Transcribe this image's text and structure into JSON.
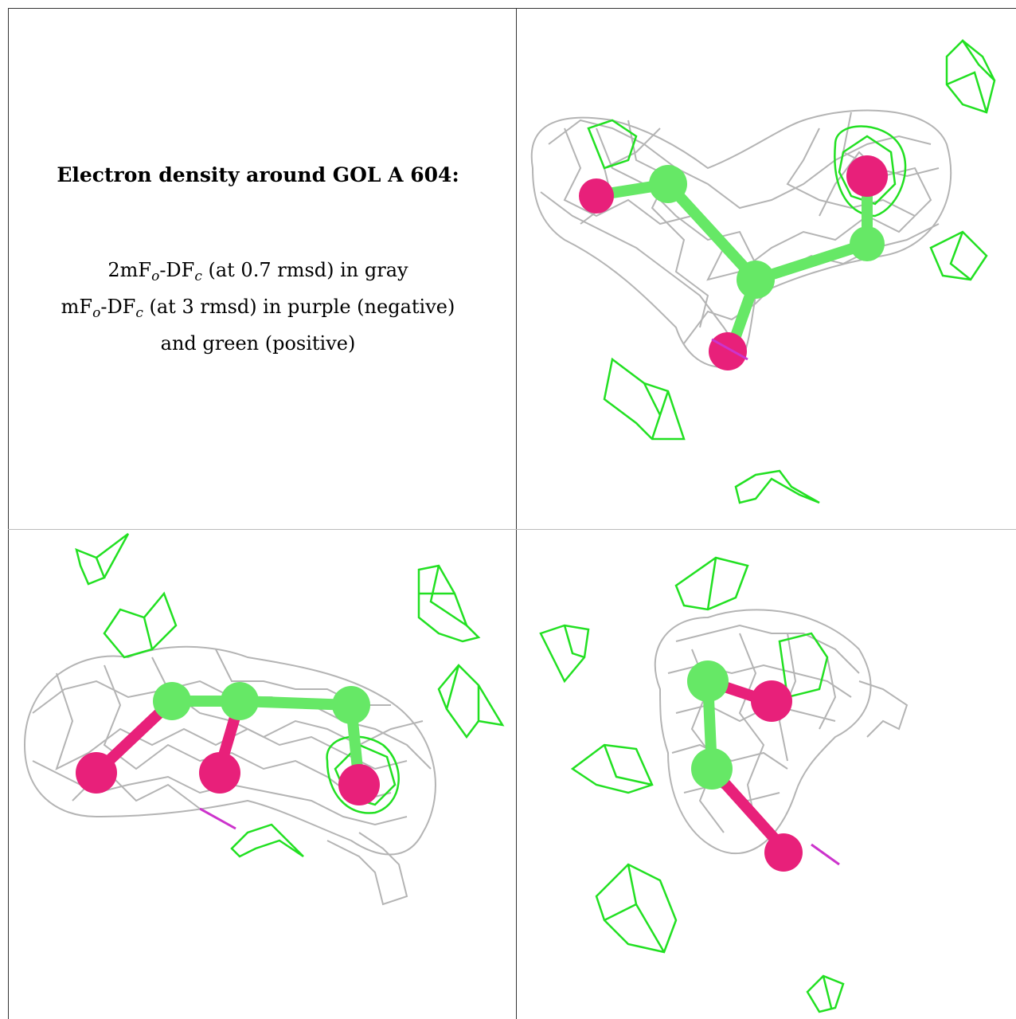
{
  "title": "Electron density around GOL A 604:",
  "legend": {
    "line1_prefix": "2mF",
    "line1_sub1": "o",
    "line1_mid": "-DF",
    "line1_sub2": "c",
    "line1_suffix": " (at 0.7 rmsd) in gray",
    "line2_prefix": "mF",
    "line2_sub1": "o",
    "line2_mid": "-DF",
    "line2_sub2": "c",
    "line2_suffix": " (at 3 rmsd) in purple (negative)",
    "line3": "and green (positive)"
  },
  "colors": {
    "mesh_2fofc": "#b4b4b4",
    "mesh_positive": "#22e022",
    "mesh_negative": "#cc33cc",
    "carbon": "#66e866",
    "oxygen": "#e8207a"
  },
  "panels": [
    "view-top-right",
    "view-bottom-left",
    "view-bottom-right"
  ]
}
